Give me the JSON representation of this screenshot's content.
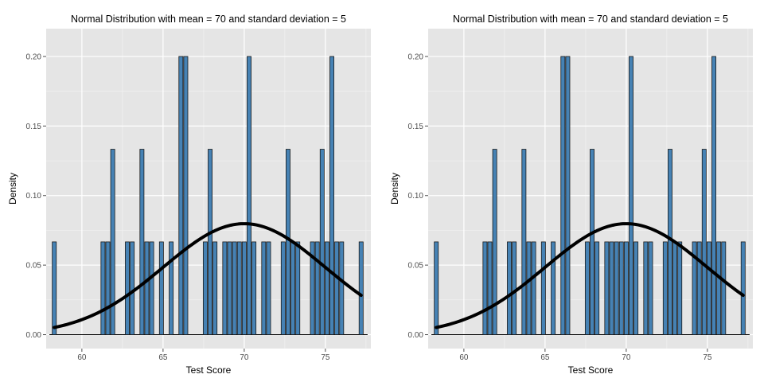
{
  "colors": {
    "panel_bg": "#e5e5e5",
    "grid_major": "#ffffff",
    "bar_fill": "#4682b4",
    "bar_stroke": "#1a1a1a",
    "curve": "#000000"
  },
  "chart_data": [
    {
      "type": "bar",
      "subtype": "histogram-with-density-curve",
      "title": "Normal Distribution with mean = 70 and standard deviation = 5",
      "xlabel": "Test Score",
      "ylabel": "Density",
      "xlim": [
        57.8,
        77.8
      ],
      "ylim": [
        -0.01,
        0.22
      ],
      "x_ticks": [
        60,
        65,
        70,
        75
      ],
      "x_tick_labels": [
        "60",
        "65",
        "70",
        "75"
      ],
      "y_ticks": [
        0.0,
        0.05,
        0.1,
        0.15,
        0.2
      ],
      "y_tick_labels": [
        "0.00",
        "0.05",
        "0.10",
        "0.15",
        "0.20"
      ],
      "grid": true,
      "bin_width": 0.25,
      "bins": [
        {
          "x": 58.3,
          "density": 0.0667
        },
        {
          "x": 61.3,
          "density": 0.0667
        },
        {
          "x": 61.6,
          "density": 0.0667
        },
        {
          "x": 61.9,
          "density": 0.1333
        },
        {
          "x": 62.8,
          "density": 0.0667
        },
        {
          "x": 63.1,
          "density": 0.0667
        },
        {
          "x": 63.7,
          "density": 0.1333
        },
        {
          "x": 64.0,
          "density": 0.0667
        },
        {
          "x": 64.3,
          "density": 0.0667
        },
        {
          "x": 64.9,
          "density": 0.0667
        },
        {
          "x": 65.5,
          "density": 0.0667
        },
        {
          "x": 66.1,
          "density": 0.2
        },
        {
          "x": 66.4,
          "density": 0.2
        },
        {
          "x": 67.6,
          "density": 0.0667
        },
        {
          "x": 67.9,
          "density": 0.1333
        },
        {
          "x": 68.2,
          "density": 0.0667
        },
        {
          "x": 68.8,
          "density": 0.0667
        },
        {
          "x": 69.1,
          "density": 0.0667
        },
        {
          "x": 69.4,
          "density": 0.0667
        },
        {
          "x": 69.7,
          "density": 0.0667
        },
        {
          "x": 70.0,
          "density": 0.0667
        },
        {
          "x": 70.3,
          "density": 0.2
        },
        {
          "x": 70.6,
          "density": 0.0667
        },
        {
          "x": 71.2,
          "density": 0.0667
        },
        {
          "x": 71.5,
          "density": 0.0667
        },
        {
          "x": 72.4,
          "density": 0.0667
        },
        {
          "x": 72.7,
          "density": 0.1333
        },
        {
          "x": 73.0,
          "density": 0.0667
        },
        {
          "x": 73.3,
          "density": 0.0667
        },
        {
          "x": 74.2,
          "density": 0.0667
        },
        {
          "x": 74.5,
          "density": 0.0667
        },
        {
          "x": 74.8,
          "density": 0.1333
        },
        {
          "x": 75.1,
          "density": 0.0667
        },
        {
          "x": 75.4,
          "density": 0.2
        },
        {
          "x": 75.7,
          "density": 0.0667
        },
        {
          "x": 76.0,
          "density": 0.0667
        },
        {
          "x": 77.2,
          "density": 0.0667
        }
      ],
      "density_curve": {
        "mean": 70,
        "sd": 5,
        "from": 58.3,
        "to": 77.2
      }
    },
    {
      "type": "bar",
      "subtype": "histogram-with-density-curve",
      "title": "Normal Distribution with mean = 70 and standard deviation = 5",
      "xlabel": "Test Score",
      "ylabel": "Density",
      "xlim": [
        57.8,
        77.8
      ],
      "ylim": [
        -0.01,
        0.22
      ],
      "x_ticks": [
        60,
        65,
        70,
        75
      ],
      "x_tick_labels": [
        "60",
        "65",
        "70",
        "75"
      ],
      "y_ticks": [
        0.0,
        0.05,
        0.1,
        0.15,
        0.2
      ],
      "y_tick_labels": [
        "0.00",
        "0.05",
        "0.10",
        "0.15",
        "0.20"
      ],
      "grid": true,
      "bin_width": 0.25,
      "bins": [
        {
          "x": 58.3,
          "density": 0.0667
        },
        {
          "x": 61.3,
          "density": 0.0667
        },
        {
          "x": 61.6,
          "density": 0.0667
        },
        {
          "x": 61.9,
          "density": 0.1333
        },
        {
          "x": 62.8,
          "density": 0.0667
        },
        {
          "x": 63.1,
          "density": 0.0667
        },
        {
          "x": 63.7,
          "density": 0.1333
        },
        {
          "x": 64.0,
          "density": 0.0667
        },
        {
          "x": 64.3,
          "density": 0.0667
        },
        {
          "x": 64.9,
          "density": 0.0667
        },
        {
          "x": 65.5,
          "density": 0.0667
        },
        {
          "x": 66.1,
          "density": 0.2
        },
        {
          "x": 66.4,
          "density": 0.2
        },
        {
          "x": 67.6,
          "density": 0.0667
        },
        {
          "x": 67.9,
          "density": 0.1333
        },
        {
          "x": 68.2,
          "density": 0.0667
        },
        {
          "x": 68.8,
          "density": 0.0667
        },
        {
          "x": 69.1,
          "density": 0.0667
        },
        {
          "x": 69.4,
          "density": 0.0667
        },
        {
          "x": 69.7,
          "density": 0.0667
        },
        {
          "x": 70.0,
          "density": 0.0667
        },
        {
          "x": 70.3,
          "density": 0.2
        },
        {
          "x": 70.6,
          "density": 0.0667
        },
        {
          "x": 71.2,
          "density": 0.0667
        },
        {
          "x": 71.5,
          "density": 0.0667
        },
        {
          "x": 72.4,
          "density": 0.0667
        },
        {
          "x": 72.7,
          "density": 0.1333
        },
        {
          "x": 73.0,
          "density": 0.0667
        },
        {
          "x": 73.3,
          "density": 0.0667
        },
        {
          "x": 74.2,
          "density": 0.0667
        },
        {
          "x": 74.5,
          "density": 0.0667
        },
        {
          "x": 74.8,
          "density": 0.1333
        },
        {
          "x": 75.1,
          "density": 0.0667
        },
        {
          "x": 75.4,
          "density": 0.2
        },
        {
          "x": 75.7,
          "density": 0.0667
        },
        {
          "x": 76.0,
          "density": 0.0667
        },
        {
          "x": 77.2,
          "density": 0.0667
        }
      ],
      "density_curve": {
        "mean": 70,
        "sd": 5,
        "from": 58.3,
        "to": 77.2
      }
    }
  ]
}
